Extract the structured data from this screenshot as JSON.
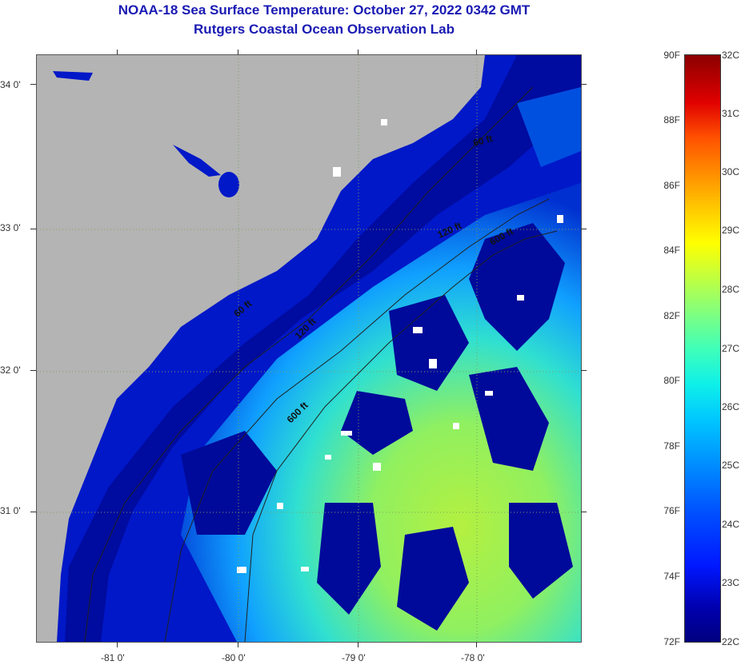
{
  "header": {
    "title": "NOAA-18 Sea Surface Temperature:  October 27, 2022 0342 GMT",
    "subtitle": "Rutgers Coastal Ocean Observation Lab"
  },
  "map": {
    "lat_labels": [
      "34 0'",
      "33 0'",
      "32 0'",
      "31 0'"
    ],
    "lon_labels": [
      "-81 0'",
      "-80 0'",
      "-79 0'",
      "-78 0'"
    ],
    "contour_labels": [
      "60 ft",
      "120 ft",
      "600 ft",
      "60 ft",
      "120 ft",
      "600 ft"
    ],
    "colors": {
      "land": "#b4b4b4",
      "cold": "#00008c",
      "mid": "#00c8ff",
      "warm": "#a8f050",
      "cloud": "#ffffff"
    }
  },
  "colorbar": {
    "fahrenheit": [
      "90F",
      "88F",
      "86F",
      "84F",
      "82F",
      "80F",
      "78F",
      "76F",
      "74F",
      "72F"
    ],
    "celsius": [
      "32C",
      "31C",
      "30C",
      "29C",
      "28C",
      "27C",
      "26C",
      "25C",
      "24C",
      "23C",
      "22C"
    ]
  }
}
